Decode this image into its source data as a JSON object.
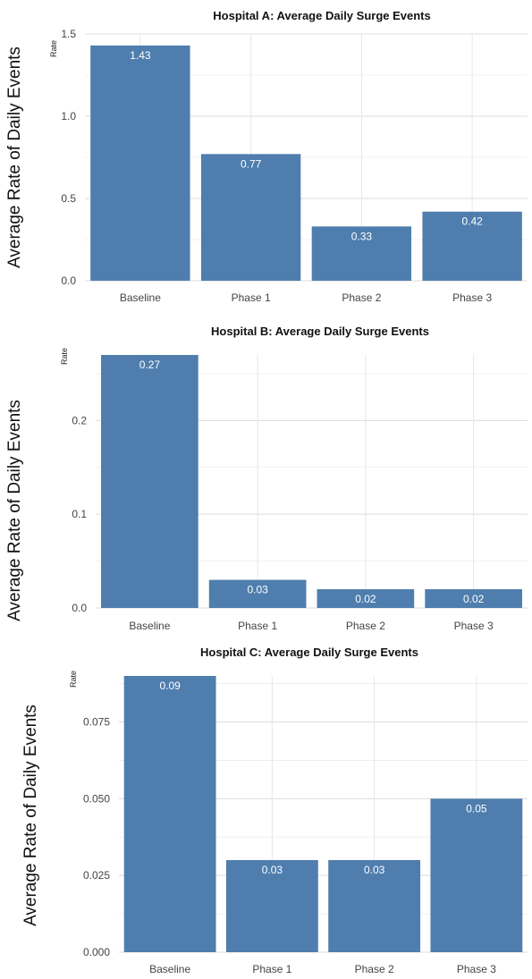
{
  "y_axis_title": "Average Rate of Daily Events",
  "chart_data": [
    {
      "type": "bar",
      "title": "Hospital A: Average Daily Surge Events",
      "ylabel": "Rate",
      "categories": [
        "Baseline",
        "Phase 1",
        "Phase 2",
        "Phase 3"
      ],
      "values": [
        1.43,
        0.77,
        0.33,
        0.42
      ],
      "data_labels": [
        "1.43",
        "0.77",
        "0.33",
        "0.42"
      ],
      "ylim": [
        0,
        1.5
      ],
      "yticks": [
        0,
        0.5,
        1.0,
        1.5
      ],
      "ytick_labels": [
        "0.0",
        "0.5",
        "1.0",
        "1.5"
      ],
      "bar_color": "#4f7eae",
      "grid": true
    },
    {
      "type": "bar",
      "title": "Hospital B: Average Daily Surge Events",
      "ylabel": "Rate",
      "categories": [
        "Baseline",
        "Phase 1",
        "Phase 2",
        "Phase 3"
      ],
      "values": [
        0.27,
        0.03,
        0.02,
        0.02
      ],
      "data_labels": [
        "0.27",
        "0.03",
        "0.02",
        "0.02"
      ],
      "ylim": [
        0,
        0.27
      ],
      "yticks": [
        0,
        0.1,
        0.2
      ],
      "ytick_labels": [
        "0.0",
        "0.1",
        "0.2"
      ],
      "bar_color": "#4f7eae",
      "grid": true
    },
    {
      "type": "bar",
      "title": "Hospital C: Average Daily Surge Events",
      "ylabel": "Rate",
      "categories": [
        "Baseline",
        "Phase 1",
        "Phase 2",
        "Phase 3"
      ],
      "values": [
        0.09,
        0.03,
        0.03,
        0.05
      ],
      "data_labels": [
        "0.09",
        "0.03",
        "0.03",
        "0.05"
      ],
      "ylim": [
        0,
        0.09
      ],
      "yticks": [
        0,
        0.025,
        0.05,
        0.075
      ],
      "ytick_labels": [
        "0.000",
        "0.025",
        "0.050",
        "0.075"
      ],
      "bar_color": "#4f7eae",
      "grid": true
    }
  ]
}
